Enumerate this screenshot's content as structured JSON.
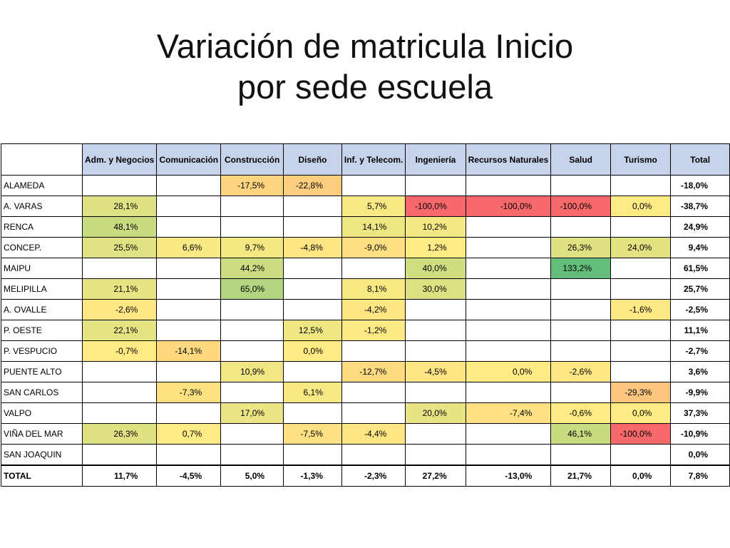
{
  "title": {
    "line1": "Variación de matricula Inicio",
    "line2": "por sede escuela"
  },
  "colors": {
    "header_bg": "#c6d3ea",
    "negative_max": "#f8696b",
    "neutral": "#ffeb84",
    "positive_max": "#63be7b"
  },
  "table": {
    "columns": [
      "Adm. y Negocios",
      "Comunicación",
      "Construcción",
      "Diseño",
      "Inf. y Telecom.",
      "Ingeniería",
      "Recursos Naturales",
      "Salud",
      "Turismo",
      "Total"
    ],
    "rows": [
      {
        "name": "ALAMEDA",
        "cells": [
          "",
          "",
          "-17,5%",
          "-22,8%",
          "",
          "",
          "",
          "",
          "",
          "-18,0%"
        ]
      },
      {
        "name": "A. VARAS",
        "cells": [
          "28,1%",
          "",
          "",
          "",
          "5,7%",
          "-100,0%",
          "-100,0%",
          "-100,0%",
          "0,0%",
          "-38,7%"
        ]
      },
      {
        "name": "RENCA",
        "cells": [
          "48,1%",
          "",
          "",
          "",
          "14,1%",
          "10,2%",
          "",
          "",
          "",
          "24,9%"
        ]
      },
      {
        "name": "CONCEP.",
        "cells": [
          "25,5%",
          "6,6%",
          "9,7%",
          "-4,8%",
          "-9,0%",
          "1,2%",
          "",
          "26,3%",
          "24,0%",
          "9,4%"
        ]
      },
      {
        "name": "MAIPU",
        "cells": [
          "",
          "",
          "44,2%",
          "",
          "",
          "40,0%",
          "",
          "133,2%",
          "",
          "61,5%"
        ]
      },
      {
        "name": "MELIPILLA",
        "cells": [
          "21,1%",
          "",
          "65,0%",
          "",
          "8,1%",
          "30,0%",
          "",
          "",
          "",
          "25,7%"
        ]
      },
      {
        "name": "A. OVALLE",
        "cells": [
          "-2,6%",
          "",
          "",
          "",
          "-4,2%",
          "",
          "",
          "",
          "-1,6%",
          "-2,5%"
        ]
      },
      {
        "name": "P. OESTE",
        "cells": [
          "22,1%",
          "",
          "",
          "12,5%",
          "-1,2%",
          "",
          "",
          "",
          "",
          "11,1%"
        ]
      },
      {
        "name": "P. VESPUCIO",
        "cells": [
          "-0,7%",
          "-14,1%",
          "",
          "0,0%",
          "",
          "",
          "",
          "",
          "",
          "-2,7%"
        ]
      },
      {
        "name": "PUENTE ALTO",
        "cells": [
          "",
          "",
          "10,9%",
          "",
          "-12,7%",
          "-4,5%",
          "0,0%",
          "-2,6%",
          "",
          "3,6%"
        ]
      },
      {
        "name": "SAN CARLOS",
        "cells": [
          "",
          "-7,3%",
          "",
          "6,1%",
          "",
          "",
          "",
          "",
          "-29,3%",
          "-9,9%"
        ]
      },
      {
        "name": "VALPO",
        "cells": [
          "",
          "",
          "17,0%",
          "",
          "",
          "20,0%",
          "-7,4%",
          "-0,6%",
          "0,0%",
          "37,3%"
        ]
      },
      {
        "name": "VIÑA DEL MAR",
        "cells": [
          "26,3%",
          "0,7%",
          "",
          "-7,5%",
          "-4,4%",
          "",
          "",
          "46,1%",
          "-100,0%",
          "-10,9%"
        ]
      },
      {
        "name": "SAN JOAQUIN",
        "cells": [
          "",
          "",
          "",
          "",
          "",
          "",
          "",
          "",
          "",
          "0,0%"
        ]
      }
    ],
    "total_row": {
      "name": "TOTAL",
      "cells": [
        "11,7%",
        "-4,5%",
        "5,0%",
        "-1,3%",
        "-2,3%",
        "27,2%",
        "-13,0%",
        "21,7%",
        "0,0%",
        "7,8%"
      ]
    }
  }
}
